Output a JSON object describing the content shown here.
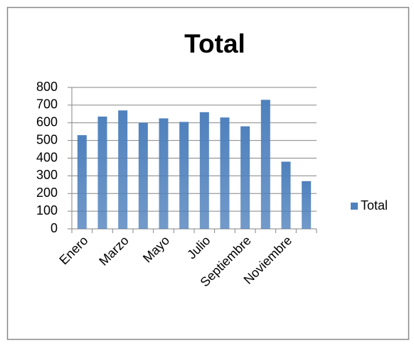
{
  "chart_data": {
    "type": "bar",
    "title": "Total",
    "categories": [
      "Enero",
      null,
      "Marzo",
      null,
      "Mayo",
      null,
      "Julio",
      null,
      "Septiembre",
      null,
      "Noviembre",
      null
    ],
    "series": [
      {
        "name": "Total",
        "color": "#4f81bd",
        "values": [
          530,
          635,
          670,
          600,
          625,
          605,
          660,
          630,
          580,
          730,
          380,
          270
        ]
      }
    ],
    "ylim": [
      0,
      800
    ],
    "yticks": [
      0,
      100,
      200,
      300,
      400,
      500,
      600,
      700,
      800
    ],
    "grid": true,
    "legend": "right"
  }
}
